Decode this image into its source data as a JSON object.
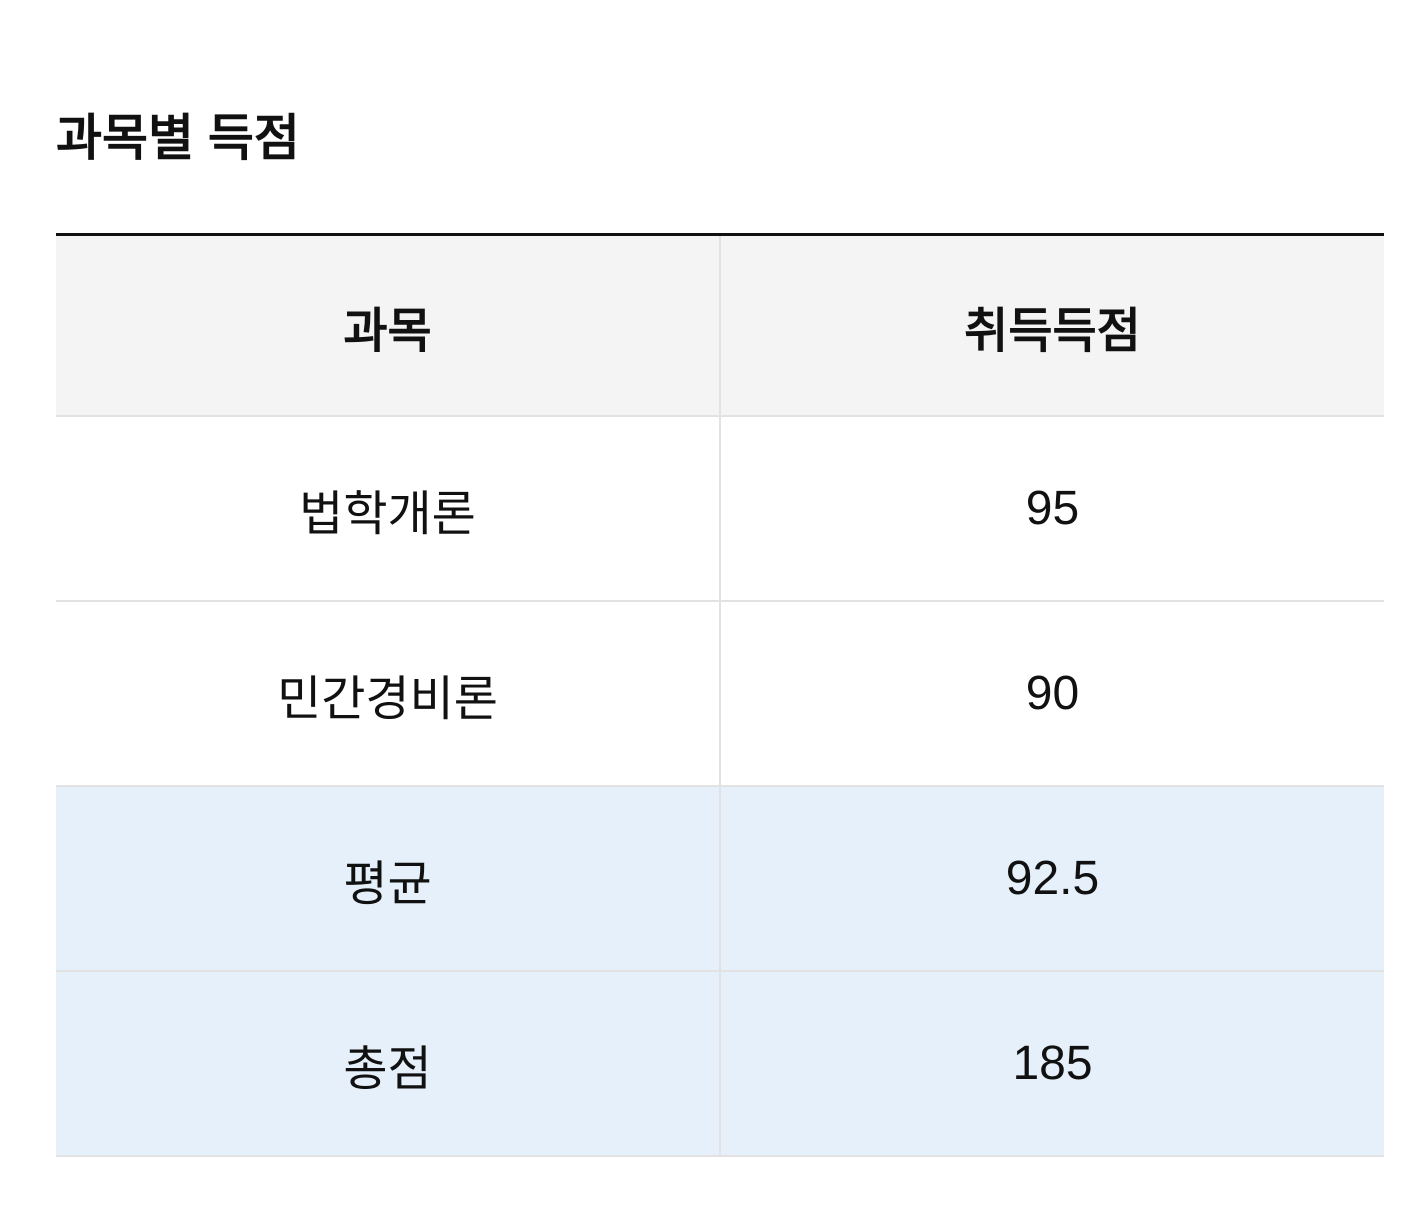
{
  "title": "과목별 득점",
  "table": {
    "headers": [
      "과목",
      "취득득점"
    ],
    "rows": [
      {
        "subject": "법학개론",
        "score": "95"
      },
      {
        "subject": "민간경비론",
        "score": "90"
      }
    ],
    "summary": [
      {
        "label": "평균",
        "value": "92.5"
      },
      {
        "label": "총점",
        "value": "185"
      }
    ]
  },
  "colors": {
    "header_bg": "#f4f4f4",
    "summary_bg": "#e5f0fa",
    "top_border": "#111111"
  }
}
